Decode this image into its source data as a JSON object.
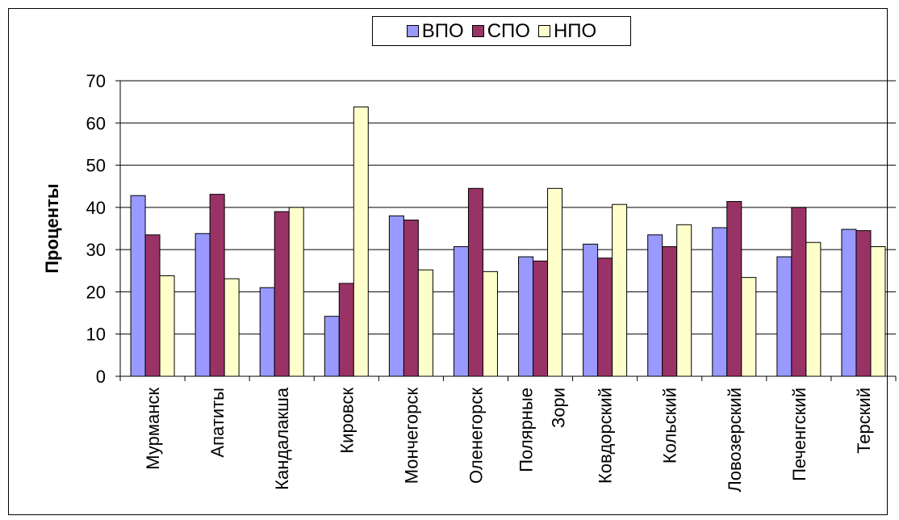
{
  "chart_data": {
    "type": "bar",
    "categories": [
      "Мурманск",
      "Апатиты",
      "Кандалакша",
      "Кировск",
      "Мончегорск",
      "Оленегорск",
      "Полярные Зори",
      "Ковдорский",
      "Кольский",
      "Ловозерский",
      "Печенгский",
      "Терский"
    ],
    "series": [
      {
        "name": "ВПО",
        "color": "#9999ff",
        "values": [
          42.8,
          33.8,
          21.0,
          14.2,
          38.0,
          30.7,
          28.3,
          31.3,
          33.5,
          35.2,
          28.3,
          34.8
        ]
      },
      {
        "name": "СПО",
        "color": "#993366",
        "values": [
          33.5,
          43.1,
          39.0,
          22.0,
          37.0,
          44.5,
          27.3,
          28.0,
          30.7,
          41.4,
          40.0,
          34.5
        ]
      },
      {
        "name": "НПО",
        "color": "#ffffcc",
        "values": [
          23.8,
          23.1,
          40.0,
          63.8,
          25.2,
          24.8,
          44.5,
          40.7,
          35.9,
          23.4,
          31.7,
          30.7
        ]
      }
    ],
    "ylabel": "Проценты",
    "ylim": [
      0,
      70
    ],
    "yticks": [
      "0",
      "10",
      "20",
      "30",
      "40",
      "50",
      "60",
      "70"
    ],
    "legend_position": "top",
    "grid": "horizontal"
  }
}
